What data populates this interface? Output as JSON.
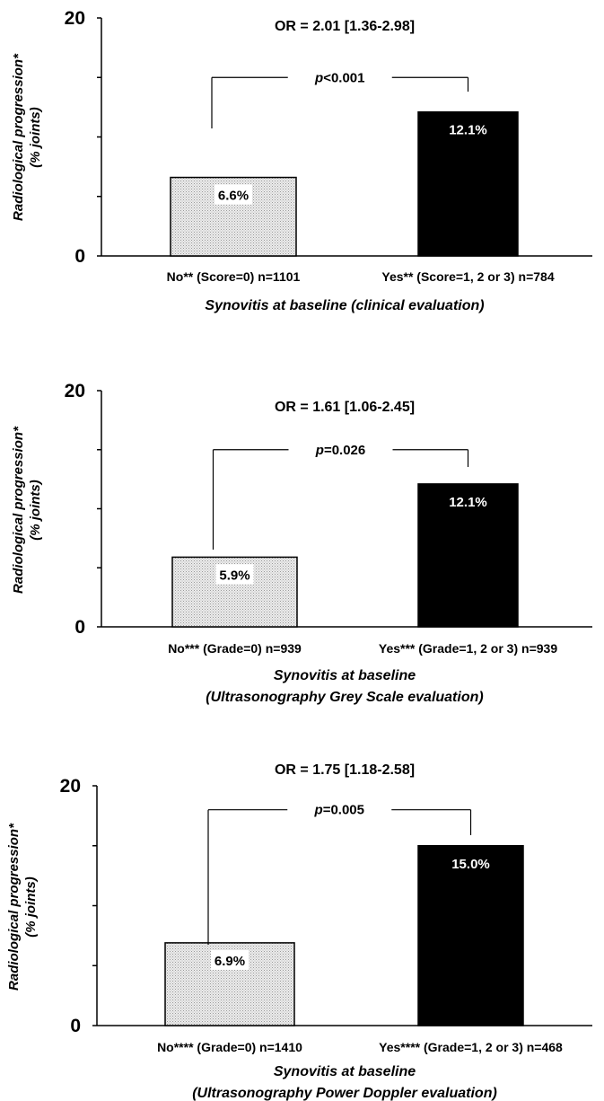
{
  "colors": {
    "no_fill": "#e2e2e2",
    "yes_fill": "#000000",
    "axis": "#000000",
    "label_on_light": "#000000",
    "label_on_dark": "#ffffff"
  },
  "chart_data": [
    {
      "type": "bar",
      "categories": [
        "No** (Score=0) n=1101",
        "Yes** (Score=1, 2 or 3) n=784"
      ],
      "values": [
        6.6,
        12.1
      ],
      "value_labels": [
        "6.6%",
        "12.1%"
      ],
      "ylim": [
        0,
        20
      ],
      "yticks": [
        0,
        5,
        10,
        15,
        20
      ],
      "ytick_labels": [
        "0",
        "20"
      ],
      "ylabel_line1": "Radiological progression*",
      "ylabel_line2": "(% joints)",
      "xlabel_lines": [
        "Synovitis at baseline (clinical evaluation)"
      ],
      "or_text": "OR = 2.01 [1.36-2.98]",
      "p_italic": "p",
      "p_rest": "<0.001",
      "bracket_y": 15
    },
    {
      "type": "bar",
      "categories": [
        "No*** (Grade=0) n=939",
        "Yes*** (Grade=1, 2 or 3) n=939"
      ],
      "values": [
        5.9,
        12.1
      ],
      "value_labels": [
        "5.9%",
        "12.1%"
      ],
      "ylim": [
        0,
        20
      ],
      "yticks": [
        0,
        5,
        10,
        15,
        20
      ],
      "ytick_labels": [
        "0",
        "20"
      ],
      "ylabel_line1": "Radiological progression*",
      "ylabel_line2": "(% joints)",
      "xlabel_lines": [
        "Synovitis at baseline",
        "(Ultrasonography Grey Scale evaluation)"
      ],
      "or_text": "OR = 1.61 [1.06-2.45]",
      "p_italic": "p",
      "p_rest": "=0.026",
      "bracket_y": 15
    },
    {
      "type": "bar",
      "categories": [
        "No**** (Grade=0) n=1410",
        "Yes**** (Grade=1, 2 or 3) n=468"
      ],
      "values": [
        6.9,
        15.0
      ],
      "value_labels": [
        "6.9%",
        "15.0%"
      ],
      "ylim": [
        0,
        20
      ],
      "yticks": [
        0,
        5,
        10,
        15,
        20
      ],
      "ytick_labels": [
        "0",
        "20"
      ],
      "ylabel_line1": "Radiological progression*",
      "ylabel_line2": "(% joints)",
      "xlabel_lines": [
        "Synovitis at baseline",
        "(Ultrasonography Power Doppler evaluation)"
      ],
      "or_text": "OR = 1.75 [1.18-2.58]",
      "p_italic": "p",
      "p_rest": "=0.005",
      "bracket_y": 18
    }
  ]
}
